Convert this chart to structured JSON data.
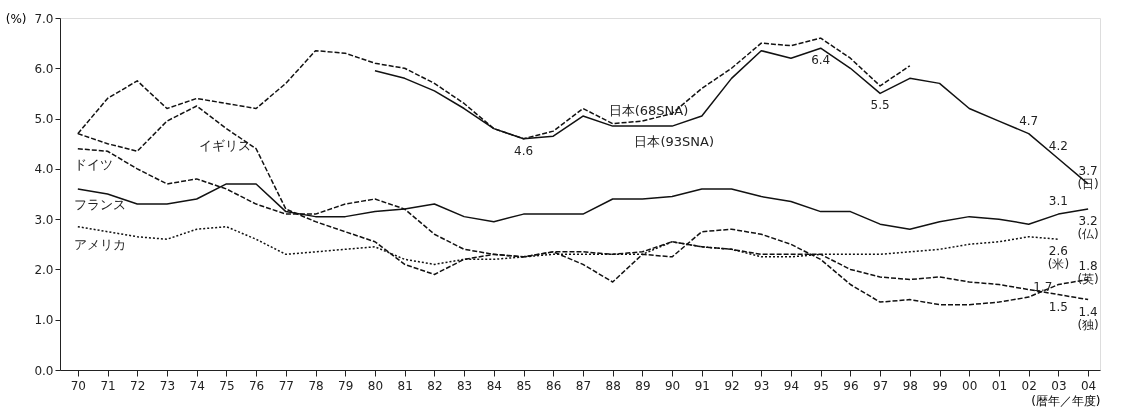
{
  "chart_data": {
    "type": "line",
    "ylabel": "(%)",
    "xlabel": "(暦年／年度)",
    "x": [
      1970,
      1971,
      1972,
      1973,
      1974,
      1975,
      1976,
      1977,
      1978,
      1979,
      1980,
      1981,
      1982,
      1983,
      1984,
      1985,
      1986,
      1987,
      1988,
      1989,
      1990,
      1991,
      1992,
      1993,
      1994,
      1995,
      1996,
      1997,
      1998,
      1999,
      2000,
      2001,
      2002,
      2003,
      2004
    ],
    "series": [
      {
        "name": "日本(68SNA)",
        "color": "#111111",
        "line_style": "dashed",
        "values": [
          4.7,
          5.4,
          5.75,
          5.2,
          5.4,
          5.3,
          5.2,
          5.7,
          6.35,
          6.3,
          6.1,
          6.0,
          5.7,
          5.3,
          4.8,
          4.6,
          4.75,
          5.2,
          4.9,
          4.95,
          5.1,
          5.6,
          6.0,
          6.5,
          6.45,
          6.6,
          6.2,
          5.65,
          6.05,
          null,
          null,
          null,
          null,
          null,
          null
        ]
      },
      {
        "name": "日本(93SNA)",
        "color": "#111111",
        "line_style": "solid",
        "values": [
          null,
          null,
          null,
          null,
          null,
          null,
          null,
          null,
          null,
          null,
          5.95,
          5.8,
          5.55,
          5.2,
          4.8,
          4.6,
          4.65,
          5.05,
          4.85,
          4.85,
          4.85,
          5.05,
          5.8,
          6.35,
          6.2,
          6.4,
          6.0,
          5.5,
          5.8,
          5.7,
          5.2,
          4.95,
          4.7,
          4.2,
          3.7
        ],
        "value_labels": [
          null,
          null,
          null,
          null,
          null,
          null,
          null,
          null,
          null,
          null,
          null,
          null,
          null,
          null,
          null,
          "4.6",
          null,
          null,
          null,
          null,
          null,
          null,
          null,
          null,
          null,
          "6.4",
          null,
          "5.5",
          null,
          null,
          null,
          null,
          "4.7",
          "4.2",
          "3.7\n(日)"
        ]
      },
      {
        "name": "フランス",
        "color": "#111111",
        "line_style": "solid",
        "values": [
          3.6,
          3.5,
          3.3,
          3.3,
          3.4,
          3.7,
          3.7,
          3.15,
          3.05,
          3.05,
          3.15,
          3.2,
          3.3,
          3.05,
          2.95,
          3.1,
          3.1,
          3.1,
          3.4,
          3.4,
          3.45,
          3.6,
          3.6,
          3.45,
          3.35,
          3.15,
          3.15,
          2.9,
          2.8,
          2.95,
          3.05,
          3.0,
          2.9,
          3.1,
          3.2
        ],
        "value_labels": [
          null,
          null,
          null,
          null,
          null,
          null,
          null,
          null,
          null,
          null,
          null,
          null,
          null,
          null,
          null,
          null,
          null,
          null,
          null,
          null,
          null,
          null,
          null,
          null,
          null,
          null,
          null,
          null,
          null,
          null,
          null,
          null,
          null,
          "3.1",
          "3.2\n(仏)"
        ]
      },
      {
        "name": "アメリカ",
        "color": "#111111",
        "line_style": "dotted",
        "values": [
          2.85,
          2.75,
          2.65,
          2.6,
          2.8,
          2.85,
          2.6,
          2.3,
          2.35,
          2.4,
          2.45,
          2.2,
          2.1,
          2.2,
          2.2,
          2.25,
          2.3,
          2.3,
          2.3,
          2.3,
          2.55,
          2.45,
          2.4,
          2.25,
          2.25,
          2.3,
          2.3,
          2.3,
          2.35,
          2.4,
          2.5,
          2.55,
          2.65,
          2.6,
          null
        ],
        "value_labels": [
          null,
          null,
          null,
          null,
          null,
          null,
          null,
          null,
          null,
          null,
          null,
          null,
          null,
          null,
          null,
          null,
          null,
          null,
          null,
          null,
          null,
          null,
          null,
          null,
          null,
          null,
          null,
          null,
          null,
          null,
          null,
          null,
          null,
          "2.6\n(米)",
          null
        ]
      },
      {
        "name": "イギリス",
        "color": "#111111",
        "line_style": "dashed",
        "values": [
          4.7,
          4.5,
          4.35,
          4.95,
          5.25,
          4.8,
          4.4,
          3.2,
          2.95,
          2.75,
          2.55,
          2.1,
          1.9,
          2.2,
          2.3,
          2.25,
          2.35,
          2.1,
          1.75,
          2.3,
          2.25,
          2.75,
          2.8,
          2.7,
          2.5,
          2.2,
          1.7,
          1.35,
          1.4,
          1.3,
          1.3,
          1.35,
          1.45,
          1.7,
          1.8
        ],
        "value_labels": [
          null,
          null,
          null,
          null,
          null,
          null,
          null,
          null,
          null,
          null,
          null,
          null,
          null,
          null,
          null,
          null,
          null,
          null,
          null,
          null,
          null,
          null,
          null,
          null,
          null,
          null,
          null,
          null,
          null,
          null,
          null,
          null,
          null,
          "1.7",
          "1.8\n(英)"
        ]
      },
      {
        "name": "ドイツ",
        "color": "#111111",
        "line_style": "dashed",
        "values": [
          4.4,
          4.35,
          4.0,
          3.7,
          3.8,
          3.6,
          3.3,
          3.1,
          3.1,
          3.3,
          3.4,
          3.2,
          2.7,
          2.4,
          2.3,
          2.25,
          2.35,
          2.35,
          2.3,
          2.35,
          2.55,
          2.45,
          2.4,
          2.3,
          2.3,
          2.3,
          2.0,
          1.85,
          1.8,
          1.85,
          1.75,
          1.7,
          1.6,
          1.5,
          1.4
        ],
        "value_labels": [
          null,
          null,
          null,
          null,
          null,
          null,
          null,
          null,
          null,
          null,
          null,
          null,
          null,
          null,
          null,
          null,
          null,
          null,
          null,
          null,
          null,
          null,
          null,
          null,
          null,
          null,
          null,
          null,
          null,
          null,
          null,
          null,
          null,
          "1.5",
          "1.4\n(独)"
        ]
      }
    ],
    "xlim": [
      1969.4,
      2004.4
    ],
    "xticks": [
      {
        "value": 1970,
        "label": "70"
      },
      {
        "value": 1971,
        "label": "71"
      },
      {
        "value": 1972,
        "label": "72"
      },
      {
        "value": 1973,
        "label": "73"
      },
      {
        "value": 1974,
        "label": "74"
      },
      {
        "value": 1975,
        "label": "75"
      },
      {
        "value": 1976,
        "label": "76"
      },
      {
        "value": 1977,
        "label": "77"
      },
      {
        "value": 1978,
        "label": "78"
      },
      {
        "value": 1979,
        "label": "79"
      },
      {
        "value": 1980,
        "label": "80"
      },
      {
        "value": 1981,
        "label": "81"
      },
      {
        "value": 1982,
        "label": "82"
      },
      {
        "value": 1983,
        "label": "83"
      },
      {
        "value": 1984,
        "label": "84"
      },
      {
        "value": 1985,
        "label": "85"
      },
      {
        "value": 1986,
        "label": "86"
      },
      {
        "value": 1987,
        "label": "87"
      },
      {
        "value": 1988,
        "label": "88"
      },
      {
        "value": 1989,
        "label": "89"
      },
      {
        "value": 1990,
        "label": "90"
      },
      {
        "value": 1991,
        "label": "91"
      },
      {
        "value": 1992,
        "label": "92"
      },
      {
        "value": 1993,
        "label": "93"
      },
      {
        "value": 1994,
        "label": "94"
      },
      {
        "value": 1995,
        "label": "95"
      },
      {
        "value": 1996,
        "label": "96"
      },
      {
        "value": 1997,
        "label": "97"
      },
      {
        "value": 1998,
        "label": "98"
      },
      {
        "value": 1999,
        "label": "99"
      },
      {
        "value": 2000,
        "label": "00"
      },
      {
        "value": 2001,
        "label": "01"
      },
      {
        "value": 2002,
        "label": "02"
      },
      {
        "value": 2003,
        "label": "03"
      },
      {
        "value": 2004,
        "label": "04"
      }
    ],
    "ylim": [
      0,
      7
    ],
    "yticks": [
      {
        "value": 0,
        "label": "0.0"
      },
      {
        "value": 1,
        "label": "1.0"
      },
      {
        "value": 2,
        "label": "2.0"
      },
      {
        "value": 3,
        "label": "3.0"
      },
      {
        "value": 4,
        "label": "4.0"
      },
      {
        "value": 5,
        "label": "5.0"
      },
      {
        "value": 6,
        "label": "6.0"
      },
      {
        "value": 7,
        "label": "7.0"
      }
    ],
    "grid": false
  }
}
